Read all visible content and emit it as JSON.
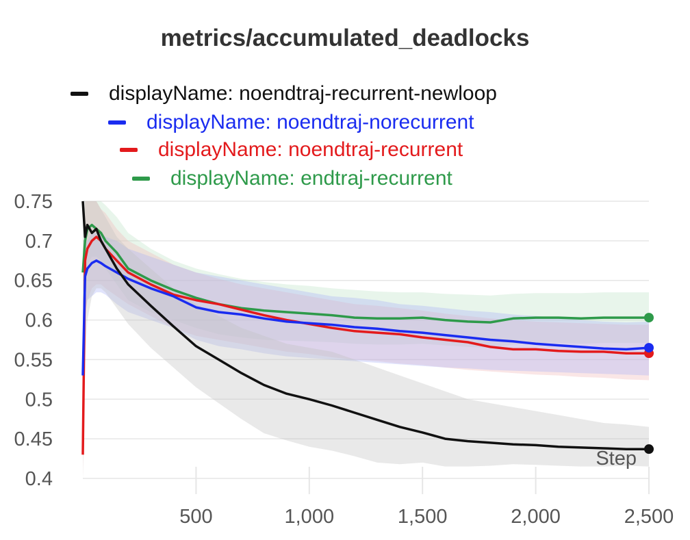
{
  "chart_data": {
    "type": "line",
    "title": "metrics/accumulated_deadlocks",
    "xlabel": "Step",
    "ylabel": "",
    "xlim": [
      0,
      2500
    ],
    "ylim": [
      0.4,
      0.75
    ],
    "x_ticks": [
      500,
      1000,
      1500,
      2000,
      2500
    ],
    "x_tick_labels": [
      "500",
      "1,000",
      "1,500",
      "2,000",
      "2,500"
    ],
    "y_ticks": [
      0.4,
      0.45,
      0.5,
      0.55,
      0.6,
      0.65,
      0.7,
      0.75
    ],
    "y_tick_labels": [
      "0.4",
      "0.45",
      "0.5",
      "0.55",
      "0.6",
      "0.65",
      "0.7",
      "0.75"
    ],
    "grid": true,
    "legend_position": "top",
    "series": [
      {
        "name": "displayName: noendtraj-recurrent-newloop",
        "color": "#111111",
        "band_color": "#bfbfbf",
        "x": [
          0,
          10,
          20,
          40,
          60,
          80,
          100,
          150,
          200,
          300,
          400,
          500,
          600,
          700,
          800,
          900,
          1000,
          1100,
          1200,
          1300,
          1400,
          1500,
          1600,
          1700,
          1800,
          1900,
          2000,
          2100,
          2200,
          2300,
          2400,
          2500
        ],
        "y": [
          0.75,
          0.705,
          0.72,
          0.71,
          0.715,
          0.7,
          0.69,
          0.665,
          0.645,
          0.618,
          0.592,
          0.567,
          0.55,
          0.533,
          0.518,
          0.507,
          0.5,
          0.492,
          0.483,
          0.474,
          0.465,
          0.458,
          0.45,
          0.447,
          0.445,
          0.443,
          0.442,
          0.44,
          0.439,
          0.438,
          0.437,
          0.437
        ],
        "upper": [
          0.75,
          0.75,
          0.75,
          0.75,
          0.75,
          0.74,
          0.73,
          0.705,
          0.69,
          0.665,
          0.64,
          0.62,
          0.605,
          0.59,
          0.58,
          0.57,
          0.565,
          0.56,
          0.55,
          0.54,
          0.53,
          0.52,
          0.51,
          0.5,
          0.495,
          0.49,
          0.485,
          0.48,
          0.475,
          0.47,
          0.468,
          0.465
        ],
        "lower": [
          0.4,
          0.55,
          0.6,
          0.63,
          0.64,
          0.64,
          0.635,
          0.615,
          0.595,
          0.565,
          0.54,
          0.515,
          0.495,
          0.475,
          0.457,
          0.448,
          0.44,
          0.435,
          0.428,
          0.42,
          0.418,
          0.42,
          0.415,
          0.415,
          0.416,
          0.418,
          0.417,
          0.416,
          0.415,
          0.415,
          0.416,
          0.415
        ]
      },
      {
        "name": "displayName: noendtraj-norecurrent",
        "color": "#1a2cf0",
        "band_color": "#aab2f5",
        "x": [
          0,
          10,
          20,
          40,
          60,
          80,
          100,
          150,
          200,
          300,
          400,
          500,
          600,
          700,
          800,
          900,
          1000,
          1100,
          1200,
          1300,
          1400,
          1500,
          1600,
          1700,
          1800,
          1900,
          2000,
          2100,
          2200,
          2300,
          2400,
          2500
        ],
        "y": [
          0.53,
          0.655,
          0.665,
          0.672,
          0.675,
          0.672,
          0.668,
          0.66,
          0.652,
          0.64,
          0.63,
          0.616,
          0.61,
          0.607,
          0.602,
          0.598,
          0.596,
          0.594,
          0.591,
          0.589,
          0.586,
          0.584,
          0.581,
          0.578,
          0.575,
          0.573,
          0.57,
          0.568,
          0.566,
          0.564,
          0.563,
          0.565
        ],
        "upper": [
          0.6,
          0.7,
          0.7,
          0.71,
          0.71,
          0.71,
          0.705,
          0.7,
          0.69,
          0.68,
          0.67,
          0.66,
          0.655,
          0.65,
          0.645,
          0.64,
          0.635,
          0.63,
          0.628,
          0.625,
          0.62,
          0.618,
          0.615,
          0.612,
          0.61,
          0.607,
          0.605,
          0.603,
          0.6,
          0.598,
          0.597,
          0.598
        ],
        "lower": [
          0.46,
          0.61,
          0.625,
          0.63,
          0.635,
          0.635,
          0.632,
          0.62,
          0.61,
          0.6,
          0.59,
          0.575,
          0.567,
          0.563,
          0.558,
          0.554,
          0.552,
          0.55,
          0.548,
          0.546,
          0.544,
          0.542,
          0.54,
          0.539,
          0.537,
          0.536,
          0.535,
          0.534,
          0.533,
          0.532,
          0.531,
          0.53
        ]
      },
      {
        "name": "displayName: noendtraj-recurrent",
        "color": "#e31a1c",
        "band_color": "#f2b8b8",
        "x": [
          0,
          10,
          20,
          40,
          60,
          80,
          100,
          150,
          200,
          300,
          400,
          500,
          600,
          700,
          800,
          900,
          1000,
          1100,
          1200,
          1300,
          1400,
          1500,
          1600,
          1700,
          1800,
          1900,
          2000,
          2100,
          2200,
          2300,
          2400,
          2500
        ],
        "y": [
          0.43,
          0.675,
          0.69,
          0.7,
          0.705,
          0.7,
          0.69,
          0.675,
          0.66,
          0.645,
          0.632,
          0.625,
          0.62,
          0.613,
          0.606,
          0.6,
          0.595,
          0.59,
          0.586,
          0.584,
          0.582,
          0.578,
          0.575,
          0.572,
          0.566,
          0.563,
          0.563,
          0.561,
          0.56,
          0.56,
          0.558,
          0.558
        ],
        "upper": [
          0.55,
          0.75,
          0.75,
          0.75,
          0.75,
          0.74,
          0.735,
          0.715,
          0.7,
          0.685,
          0.67,
          0.66,
          0.652,
          0.645,
          0.64,
          0.635,
          0.63,
          0.625,
          0.62,
          0.618,
          0.615,
          0.612,
          0.608,
          0.605,
          0.602,
          0.6,
          0.598,
          0.597,
          0.596,
          0.595,
          0.594,
          0.594
        ],
        "lower": [
          0.4,
          0.6,
          0.625,
          0.64,
          0.645,
          0.645,
          0.64,
          0.63,
          0.62,
          0.605,
          0.59,
          0.58,
          0.575,
          0.57,
          0.565,
          0.56,
          0.557,
          0.553,
          0.55,
          0.548,
          0.545,
          0.543,
          0.54,
          0.537,
          0.535,
          0.533,
          0.531,
          0.53,
          0.528,
          0.527,
          0.525,
          0.524
        ]
      },
      {
        "name": "displayName: endtraj-recurrent",
        "color": "#2e9a4a",
        "band_color": "#bde3c6",
        "x": [
          0,
          10,
          20,
          40,
          60,
          80,
          100,
          150,
          200,
          300,
          400,
          500,
          600,
          700,
          800,
          900,
          1000,
          1100,
          1200,
          1300,
          1400,
          1500,
          1600,
          1700,
          1800,
          1900,
          2000,
          2100,
          2200,
          2300,
          2400,
          2500
        ],
        "y": [
          0.66,
          0.7,
          0.715,
          0.72,
          0.715,
          0.71,
          0.7,
          0.685,
          0.665,
          0.65,
          0.638,
          0.628,
          0.62,
          0.615,
          0.612,
          0.61,
          0.608,
          0.606,
          0.603,
          0.602,
          0.602,
          0.603,
          0.6,
          0.598,
          0.597,
          0.602,
          0.603,
          0.603,
          0.602,
          0.603,
          0.603,
          0.603
        ],
        "upper": [
          0.7,
          0.75,
          0.75,
          0.75,
          0.75,
          0.75,
          0.745,
          0.73,
          0.71,
          0.69,
          0.675,
          0.665,
          0.658,
          0.652,
          0.648,
          0.645,
          0.643,
          0.64,
          0.638,
          0.636,
          0.635,
          0.635,
          0.633,
          0.632,
          0.631,
          0.633,
          0.634,
          0.634,
          0.634,
          0.635,
          0.635,
          0.635
        ],
        "lower": [
          0.62,
          0.65,
          0.67,
          0.68,
          0.68,
          0.675,
          0.665,
          0.645,
          0.625,
          0.61,
          0.6,
          0.59,
          0.582,
          0.578,
          0.575,
          0.574,
          0.573,
          0.572,
          0.57,
          0.569,
          0.569,
          0.57,
          0.568,
          0.566,
          0.565,
          0.569,
          0.571,
          0.571,
          0.57,
          0.571,
          0.571,
          0.571
        ]
      }
    ]
  }
}
